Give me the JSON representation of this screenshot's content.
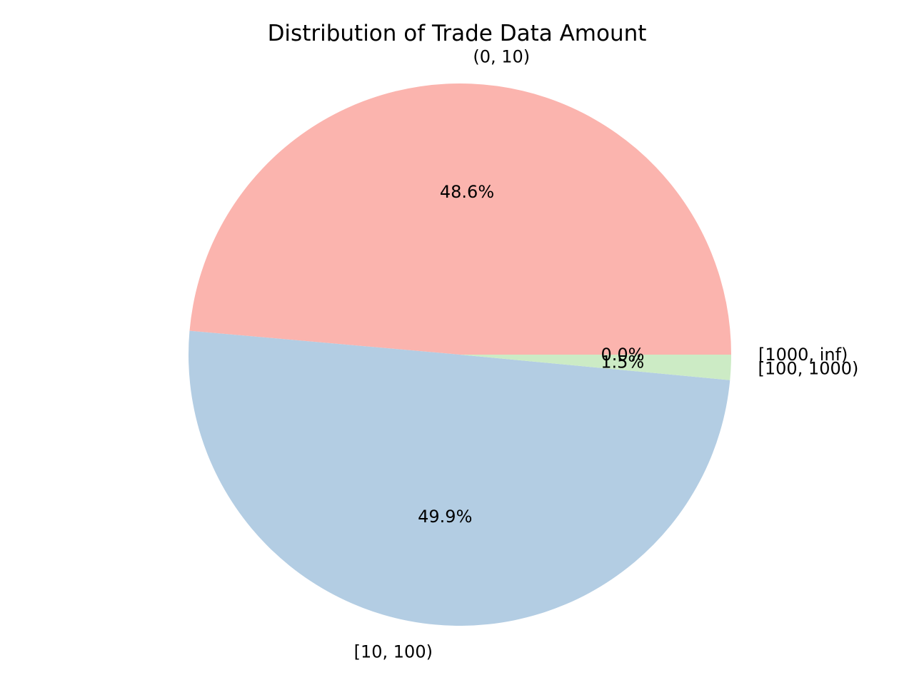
{
  "chart_data": {
    "type": "pie",
    "title": "Distribution of Trade Data Amount",
    "categories": [
      "(0, 10)",
      "[10, 100)",
      "[100, 1000)",
      "[1000, inf)"
    ],
    "values": [
      48.6,
      49.9,
      1.5,
      0.0
    ],
    "percent_labels": [
      "48.6%",
      "49.9%",
      "1.5%",
      "0.0%"
    ],
    "colors": [
      "#fbb4ae",
      "#b3cde3",
      "#ccebc5",
      "#decbe4"
    ],
    "start_angle_deg": 0,
    "direction": "counterclockwise",
    "legend": "none"
  }
}
